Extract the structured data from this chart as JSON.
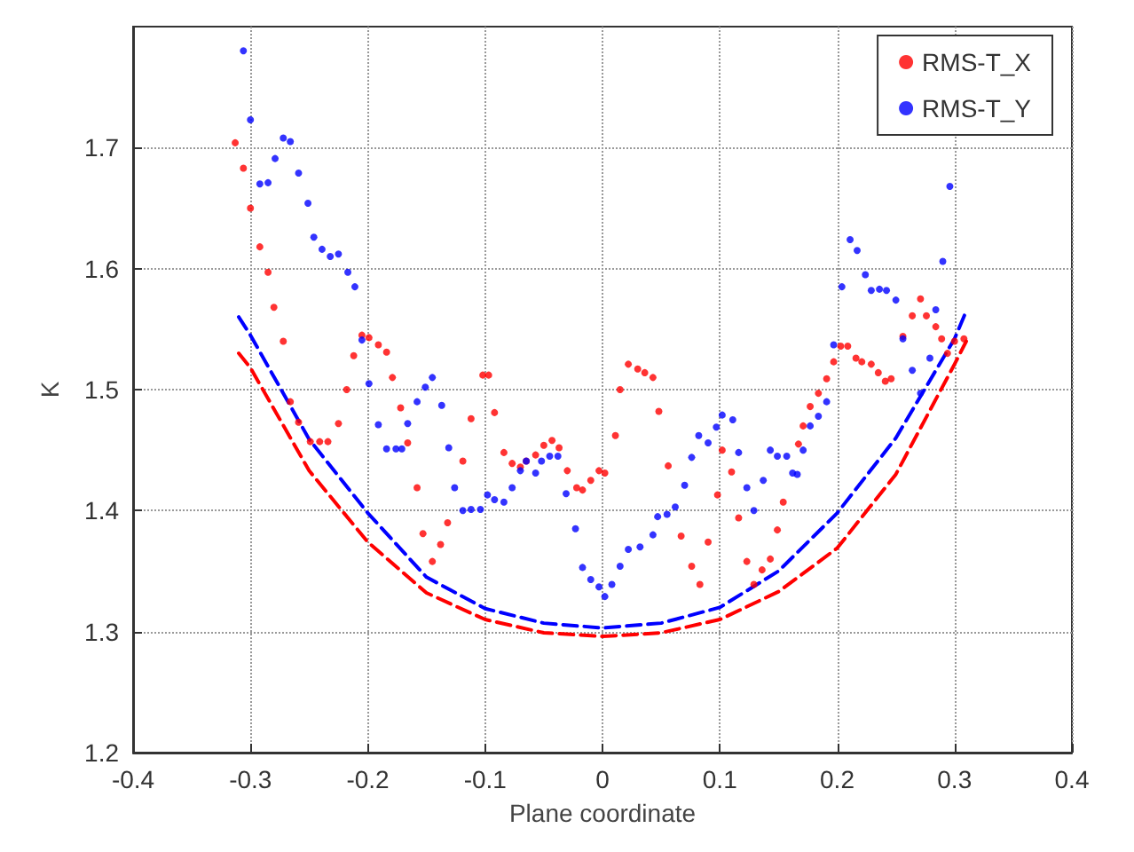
{
  "chart_data": {
    "type": "scatter",
    "xlabel": "Plane coordinate",
    "ylabel": "K",
    "xlim": [
      -0.4,
      0.4
    ],
    "xticks": [
      -0.4,
      -0.3,
      -0.2,
      -0.1,
      0,
      0.1,
      0.2,
      0.3,
      0.4
    ],
    "ylim": [
      1.2,
      1.8
    ],
    "yticks": [
      1.2,
      1.3,
      1.4,
      1.5,
      1.6,
      1.7
    ],
    "grid": true,
    "legend": "top right",
    "marker": "circle",
    "series": [
      {
        "name": "RMS-T_X",
        "color": "#ff0000",
        "x": [
          -0.313,
          -0.306,
          -0.3,
          -0.292,
          -0.285,
          -0.28,
          -0.272,
          -0.266,
          -0.259,
          -0.249,
          -0.241,
          -0.234,
          -0.225,
          -0.218,
          -0.212,
          -0.205,
          -0.199,
          -0.191,
          -0.184,
          -0.179,
          -0.172,
          -0.166,
          -0.158,
          -0.153,
          -0.145,
          -0.138,
          -0.132,
          -0.119,
          -0.112,
          -0.102,
          -0.097,
          -0.092,
          -0.084,
          -0.077,
          -0.07,
          -0.065,
          -0.057,
          -0.05,
          -0.043,
          -0.037,
          -0.03,
          -0.022,
          -0.017,
          -0.01,
          -0.003,
          0.002,
          0.011,
          0.015,
          0.022,
          0.03,
          0.036,
          0.043,
          0.048,
          0.056,
          0.067,
          0.076,
          0.083,
          0.09,
          0.098,
          0.102,
          0.11,
          0.116,
          0.123,
          0.129,
          0.136,
          0.143,
          0.149,
          0.154,
          0.162,
          0.167,
          0.171,
          0.177,
          0.184,
          0.191,
          0.197,
          0.203,
          0.209,
          0.216,
          0.221,
          0.229,
          0.235,
          0.241,
          0.246,
          0.256,
          0.264,
          0.271,
          0.276,
          0.284,
          0.289,
          0.294,
          0.3,
          0.308
        ],
        "values": [
          1.704,
          1.683,
          1.65,
          1.618,
          1.597,
          1.568,
          1.54,
          1.49,
          1.473,
          1.457,
          1.457,
          1.457,
          1.472,
          1.5,
          1.528,
          1.545,
          1.543,
          1.537,
          1.531,
          1.51,
          1.485,
          1.456,
          1.419,
          1.381,
          1.358,
          1.372,
          1.39,
          1.441,
          1.476,
          1.512,
          1.512,
          1.481,
          1.448,
          1.439,
          1.436,
          1.441,
          1.446,
          1.454,
          1.458,
          1.452,
          1.433,
          1.419,
          1.417,
          1.425,
          1.433,
          1.431,
          1.462,
          1.5,
          1.521,
          1.517,
          1.514,
          1.51,
          1.482,
          1.437,
          1.379,
          1.354,
          1.339,
          1.374,
          1.413,
          1.45,
          1.432,
          1.394,
          1.358,
          1.339,
          1.351,
          1.36,
          1.384,
          1.407,
          null,
          1.455,
          1.47,
          1.486,
          1.497,
          1.509,
          1.523,
          1.536,
          1.536,
          1.526,
          1.523,
          1.521,
          1.514,
          1.507,
          1.509,
          1.544,
          1.561,
          1.575,
          1.561,
          1.552,
          1.542,
          1.53,
          1.54,
          1.542
        ]
      },
      {
        "name": "RMS-T_Y",
        "color": "#0000ff",
        "x": [
          -0.306,
          -0.3,
          -0.292,
          -0.285,
          -0.279,
          -0.272,
          -0.266,
          -0.259,
          -0.251,
          -0.246,
          -0.239,
          -0.232,
          -0.225,
          -0.217,
          -0.211,
          -0.205,
          -0.199,
          -0.191,
          -0.184,
          -0.176,
          -0.171,
          -0.166,
          -0.158,
          -0.151,
          -0.145,
          -0.137,
          -0.131,
          -0.126,
          -0.119,
          -0.112,
          -0.104,
          -0.098,
          -0.092,
          -0.084,
          -0.077,
          -0.07,
          -0.065,
          -0.057,
          -0.052,
          -0.045,
          -0.038,
          -0.031,
          -0.023,
          -0.017,
          -0.01,
          -0.003,
          0.002,
          0.008,
          0.015,
          0.022,
          0.032,
          0.043,
          0.047,
          0.055,
          0.062,
          0.07,
          0.076,
          0.082,
          0.09,
          0.097,
          0.102,
          0.111,
          0.116,
          0.123,
          0.129,
          0.137,
          0.143,
          0.149,
          0.157,
          0.162,
          0.166,
          0.171,
          0.177,
          0.184,
          0.191,
          0.197,
          0.204,
          0.211,
          0.217,
          0.224,
          0.229,
          0.236,
          0.242,
          0.25,
          0.256,
          0.264,
          0.271,
          0.279,
          0.284,
          0.29,
          0.296
        ],
        "values": [
          1.78,
          1.723,
          1.67,
          1.671,
          1.691,
          1.708,
          1.705,
          1.679,
          1.654,
          1.626,
          1.616,
          1.61,
          1.612,
          1.597,
          1.585,
          1.541,
          1.505,
          1.471,
          1.451,
          1.451,
          1.451,
          1.472,
          1.49,
          1.502,
          1.51,
          1.487,
          1.452,
          1.419,
          1.4,
          1.401,
          1.401,
          1.413,
          1.409,
          1.407,
          1.419,
          1.433,
          1.441,
          1.431,
          1.441,
          1.445,
          1.445,
          1.414,
          1.385,
          1.353,
          1.343,
          1.337,
          1.329,
          1.339,
          1.354,
          1.368,
          1.37,
          1.38,
          1.395,
          1.397,
          1.403,
          1.421,
          1.444,
          1.462,
          1.456,
          1.469,
          1.479,
          1.475,
          1.448,
          1.419,
          1.4,
          1.425,
          1.45,
          1.445,
          1.445,
          1.431,
          1.43,
          1.45,
          1.47,
          1.478,
          1.49,
          1.537,
          1.585,
          1.624,
          1.615,
          1.595,
          1.582,
          1.583,
          1.582,
          1.574,
          1.542,
          1.516,
          1.497,
          1.526,
          1.566,
          1.606,
          1.668
        ]
      },
      {
        "type": "line",
        "line_style": "dashed",
        "marker": "none",
        "color": "#ff0000",
        "x": [
          -0.31,
          -0.3,
          -0.25,
          -0.2,
          -0.15,
          -0.1,
          -0.05,
          0,
          0.05,
          0.1,
          0.15,
          0.2,
          0.25,
          0.3,
          0.31
        ],
        "values": [
          1.53,
          1.518,
          1.433,
          1.374,
          1.332,
          1.31,
          1.299,
          1.296,
          1.299,
          1.31,
          1.333,
          1.369,
          1.43,
          1.521,
          1.54
        ]
      },
      {
        "type": "line",
        "line_style": "dashed",
        "marker": "none",
        "color": "#0000ff",
        "x": [
          -0.31,
          -0.3,
          -0.25,
          -0.2,
          -0.15,
          -0.1,
          -0.05,
          0,
          0.05,
          0.1,
          0.15,
          0.2,
          0.25,
          0.3,
          0.31
        ],
        "values": [
          1.56,
          1.545,
          1.459,
          1.398,
          1.345,
          1.319,
          1.307,
          1.303,
          1.307,
          1.32,
          1.35,
          1.398,
          1.46,
          1.542,
          1.565
        ]
      }
    ]
  }
}
